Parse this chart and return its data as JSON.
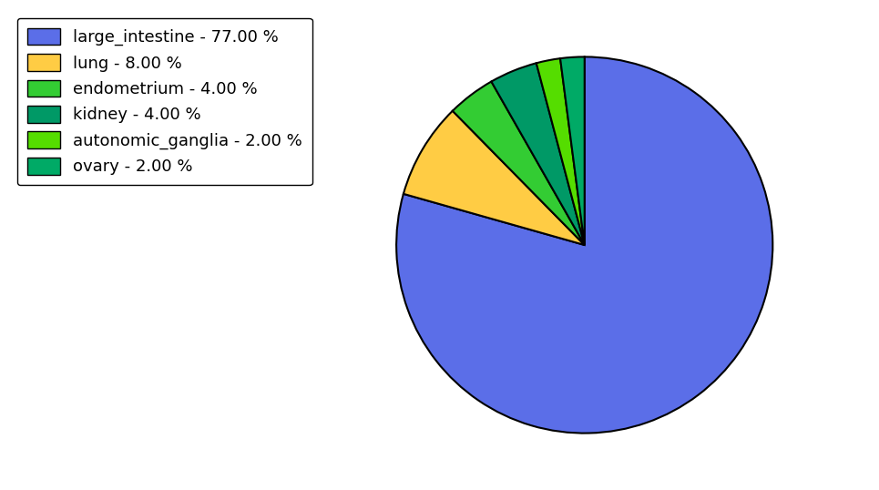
{
  "labels": [
    "large_intestine",
    "lung",
    "endometrium",
    "kidney",
    "autonomic_ganglia",
    "ovary"
  ],
  "values": [
    77.0,
    8.0,
    4.0,
    4.0,
    2.0,
    2.0
  ],
  "colors": [
    "#5b6ee8",
    "#ffcc44",
    "#33cc33",
    "#009966",
    "#55dd00",
    "#00aa66"
  ],
  "legend_labels": [
    "large_intestine - 77.00 %",
    "lung - 8.00 %",
    "endometrium - 4.00 %",
    "kidney - 4.00 %",
    "autonomic_ganglia - 2.00 %",
    "ovary - 2.00 %"
  ],
  "startangle": 90,
  "figsize": [
    9.65,
    5.38
  ],
  "dpi": 100,
  "bg_color": "#ffffff",
  "edge_color": "#000000",
  "edge_width": 1.5,
  "legend_fontsize": 13
}
